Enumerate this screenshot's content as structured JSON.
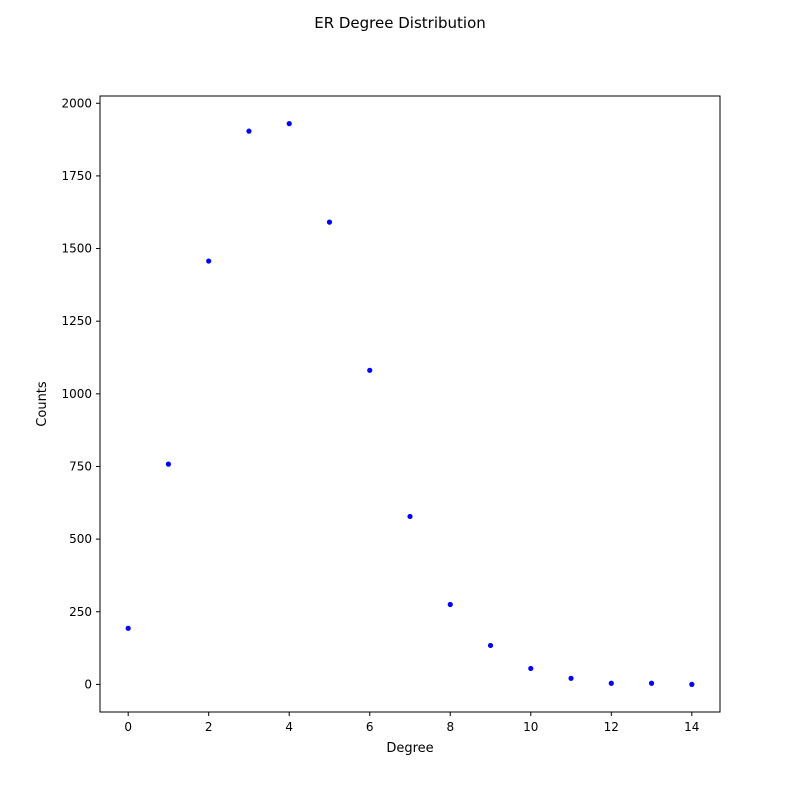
{
  "chart_data": {
    "type": "scatter",
    "title": "ER Degree Distribution",
    "xlabel": "Degree",
    "ylabel": "Counts",
    "xlim": [
      -0.7,
      14.7
    ],
    "ylim": [
      -95,
      2025
    ],
    "xticks": [
      0,
      2,
      4,
      6,
      8,
      10,
      12,
      14
    ],
    "yticks": [
      0,
      250,
      500,
      750,
      1000,
      1250,
      1500,
      1750,
      2000
    ],
    "grid": false,
    "marker_color": "#0000ff",
    "points": [
      {
        "x": 0,
        "y": 193
      },
      {
        "x": 1,
        "y": 758
      },
      {
        "x": 2,
        "y": 1457
      },
      {
        "x": 3,
        "y": 1904
      },
      {
        "x": 4,
        "y": 1930
      },
      {
        "x": 5,
        "y": 1591
      },
      {
        "x": 6,
        "y": 1081
      },
      {
        "x": 7,
        "y": 578
      },
      {
        "x": 8,
        "y": 275
      },
      {
        "x": 9,
        "y": 134
      },
      {
        "x": 10,
        "y": 55
      },
      {
        "x": 11,
        "y": 21
      },
      {
        "x": 12,
        "y": 4
      },
      {
        "x": 13,
        "y": 4
      },
      {
        "x": 14,
        "y": 0
      }
    ]
  }
}
